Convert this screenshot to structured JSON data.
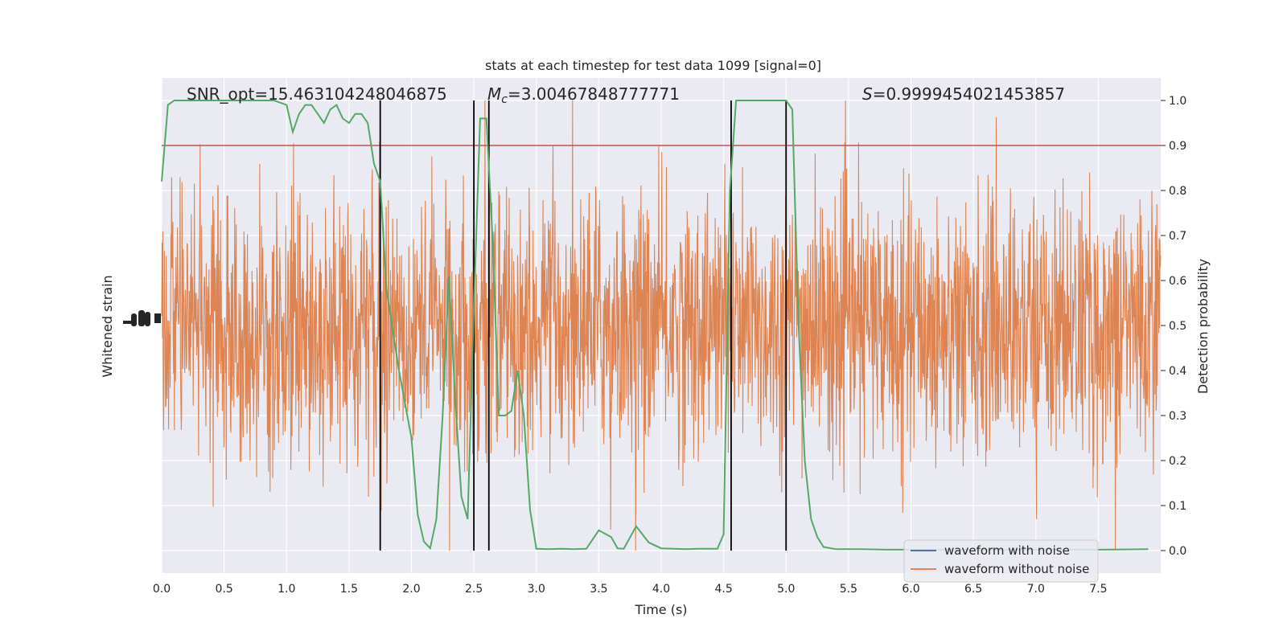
{
  "chart_data": {
    "type": "line",
    "title": "stats at each timestep for test data 1099 [signal=0]",
    "xlabel": "Time (s)",
    "ylabel_left": "Whitened strain",
    "ylabel_right": "Detection probability",
    "xlim": [
      0.0,
      8.0
    ],
    "ylim_right": [
      -0.05,
      1.05
    ],
    "x_ticks": [
      "0.0",
      "0.5",
      "1.0",
      "1.5",
      "2.0",
      "2.5",
      "3.0",
      "3.5",
      "4.0",
      "4.5",
      "5.0",
      "5.5",
      "6.0",
      "6.5",
      "7.0",
      "7.5"
    ],
    "x_tick_values": [
      0.0,
      0.5,
      1.0,
      1.5,
      2.0,
      2.5,
      3.0,
      3.5,
      4.0,
      4.5,
      5.0,
      5.5,
      6.0,
      6.5,
      7.0,
      7.5
    ],
    "y_ticks_right": [
      "0.0",
      "0.1",
      "0.2",
      "0.3",
      "0.4",
      "0.5",
      "0.6",
      "0.7",
      "0.8",
      "0.9",
      "1.0"
    ],
    "y_tick_values_right": [
      0.0,
      0.1,
      0.2,
      0.3,
      0.4,
      0.5,
      0.6,
      0.7,
      0.8,
      0.9,
      1.0
    ],
    "annotations": {
      "snr": "SNR_opt=15.463104248046875",
      "mc_symbol": "M",
      "mc_sub": "c",
      "mc_value": "=3.00467848777771",
      "s_symbol": "S",
      "s_value": "=0.9999454021453857"
    },
    "threshold": 0.9,
    "vertical_lines": [
      1.75,
      2.5,
      2.62,
      4.56,
      5.0
    ],
    "legend": {
      "placement": "lower right",
      "entries": [
        "waveform with noise",
        "waveform without noise"
      ]
    },
    "series": [
      {
        "name": "waveform with noise",
        "color": "#4c72b0",
        "note_values": []
      },
      {
        "name": "waveform without noise",
        "color": "#dd8452",
        "envelope_center": 0.5,
        "x_range": [
          0.0,
          8.0
        ]
      },
      {
        "color": "#55a868",
        "x": [
          0.0,
          0.05,
          0.1,
          0.2,
          0.3,
          0.4,
          0.5,
          0.6,
          0.7,
          0.8,
          0.9,
          1.0,
          1.05,
          1.1,
          1.15,
          1.2,
          1.25,
          1.3,
          1.35,
          1.4,
          1.45,
          1.5,
          1.55,
          1.6,
          1.65,
          1.7,
          1.75,
          1.8,
          1.9,
          2.0,
          2.05,
          2.1,
          2.15,
          2.2,
          2.25,
          2.3,
          2.35,
          2.4,
          2.45,
          2.5,
          2.55,
          2.6,
          2.65,
          2.7,
          2.75,
          2.8,
          2.85,
          2.9,
          2.95,
          3.0,
          3.1,
          3.2,
          3.3,
          3.4,
          3.5,
          3.6,
          3.65,
          3.7,
          3.8,
          3.9,
          4.0,
          4.1,
          4.2,
          4.3,
          4.4,
          4.45,
          4.5,
          4.55,
          4.6,
          4.65,
          4.7,
          4.8,
          4.9,
          5.0,
          5.05,
          5.1,
          5.15,
          5.2,
          5.25,
          5.3,
          5.4,
          5.6,
          5.8,
          6.0,
          6.5,
          7.0,
          7.5,
          7.9
        ],
        "y": [
          0.82,
          0.99,
          1.0,
          1.0,
          1.0,
          1.0,
          1.0,
          1.0,
          1.0,
          1.0,
          1.0,
          0.99,
          0.93,
          0.97,
          0.99,
          0.99,
          0.97,
          0.95,
          0.98,
          0.99,
          0.96,
          0.95,
          0.97,
          0.97,
          0.95,
          0.86,
          0.82,
          0.58,
          0.4,
          0.25,
          0.08,
          0.02,
          0.005,
          0.07,
          0.3,
          0.61,
          0.34,
          0.12,
          0.07,
          0.54,
          0.96,
          0.96,
          0.69,
          0.3,
          0.3,
          0.31,
          0.4,
          0.3,
          0.09,
          0.004,
          0.003,
          0.004,
          0.003,
          0.004,
          0.045,
          0.03,
          0.005,
          0.004,
          0.054,
          0.018,
          0.005,
          0.004,
          0.003,
          0.004,
          0.004,
          0.004,
          0.036,
          0.8,
          1.0,
          1.0,
          1.0,
          1.0,
          1.0,
          1.0,
          0.98,
          0.5,
          0.2,
          0.07,
          0.03,
          0.008,
          0.003,
          0.003,
          0.002,
          0.002,
          0.002,
          0.002,
          0.002,
          0.003
        ]
      }
    ]
  }
}
